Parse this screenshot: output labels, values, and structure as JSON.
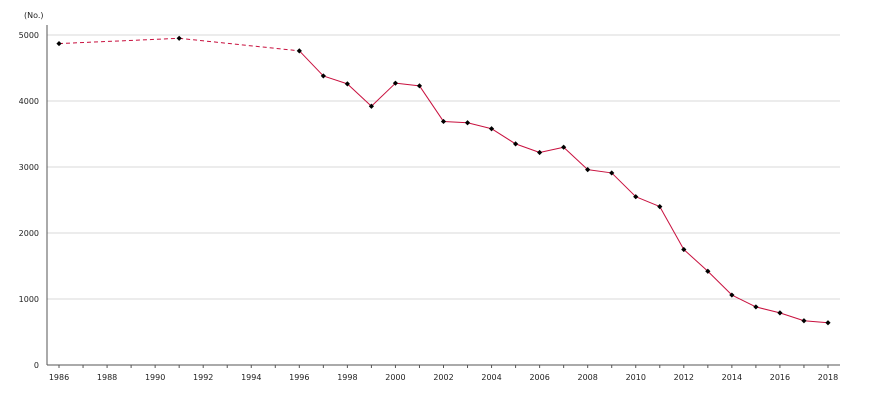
{
  "chart_data": {
    "type": "line",
    "title": "",
    "xlabel": "",
    "ylabel": "(No.)",
    "xlim": [
      1985.5,
      2018.5
    ],
    "ylim": [
      0,
      5000
    ],
    "grid": true,
    "legend": "none",
    "x_ticks": [
      "1986",
      "1988",
      "1990",
      "1992",
      "1994",
      "1996",
      "1998",
      "2000",
      "2002",
      "2004",
      "2006",
      "2008",
      "2010",
      "2012",
      "2014",
      "2016",
      "2018"
    ],
    "y_ticks": [
      "0",
      "1000",
      "2000",
      "3000",
      "4000",
      "5000"
    ],
    "colors": {
      "line": "#c8103e",
      "marker": "#000000",
      "grid": "#d9d9d9",
      "axis": "#555555"
    },
    "series": [
      {
        "x": [
          1986,
          1991,
          1996,
          1997,
          1998,
          1999,
          2000,
          2001,
          2002,
          2003,
          2004,
          2005,
          2006,
          2007,
          2008,
          2009,
          2010,
          2011,
          2012,
          2013,
          2014,
          2015,
          2016,
          2017,
          2018
        ],
        "y": [
          4870,
          4950,
          4760,
          4380,
          4260,
          3920,
          4270,
          4230,
          3690,
          3670,
          3580,
          3350,
          3220,
          3300,
          2960,
          2910,
          2550,
          2400,
          1750,
          1420,
          1060,
          880,
          790,
          670,
          640
        ],
        "dashed_until": 1996
      }
    ]
  }
}
